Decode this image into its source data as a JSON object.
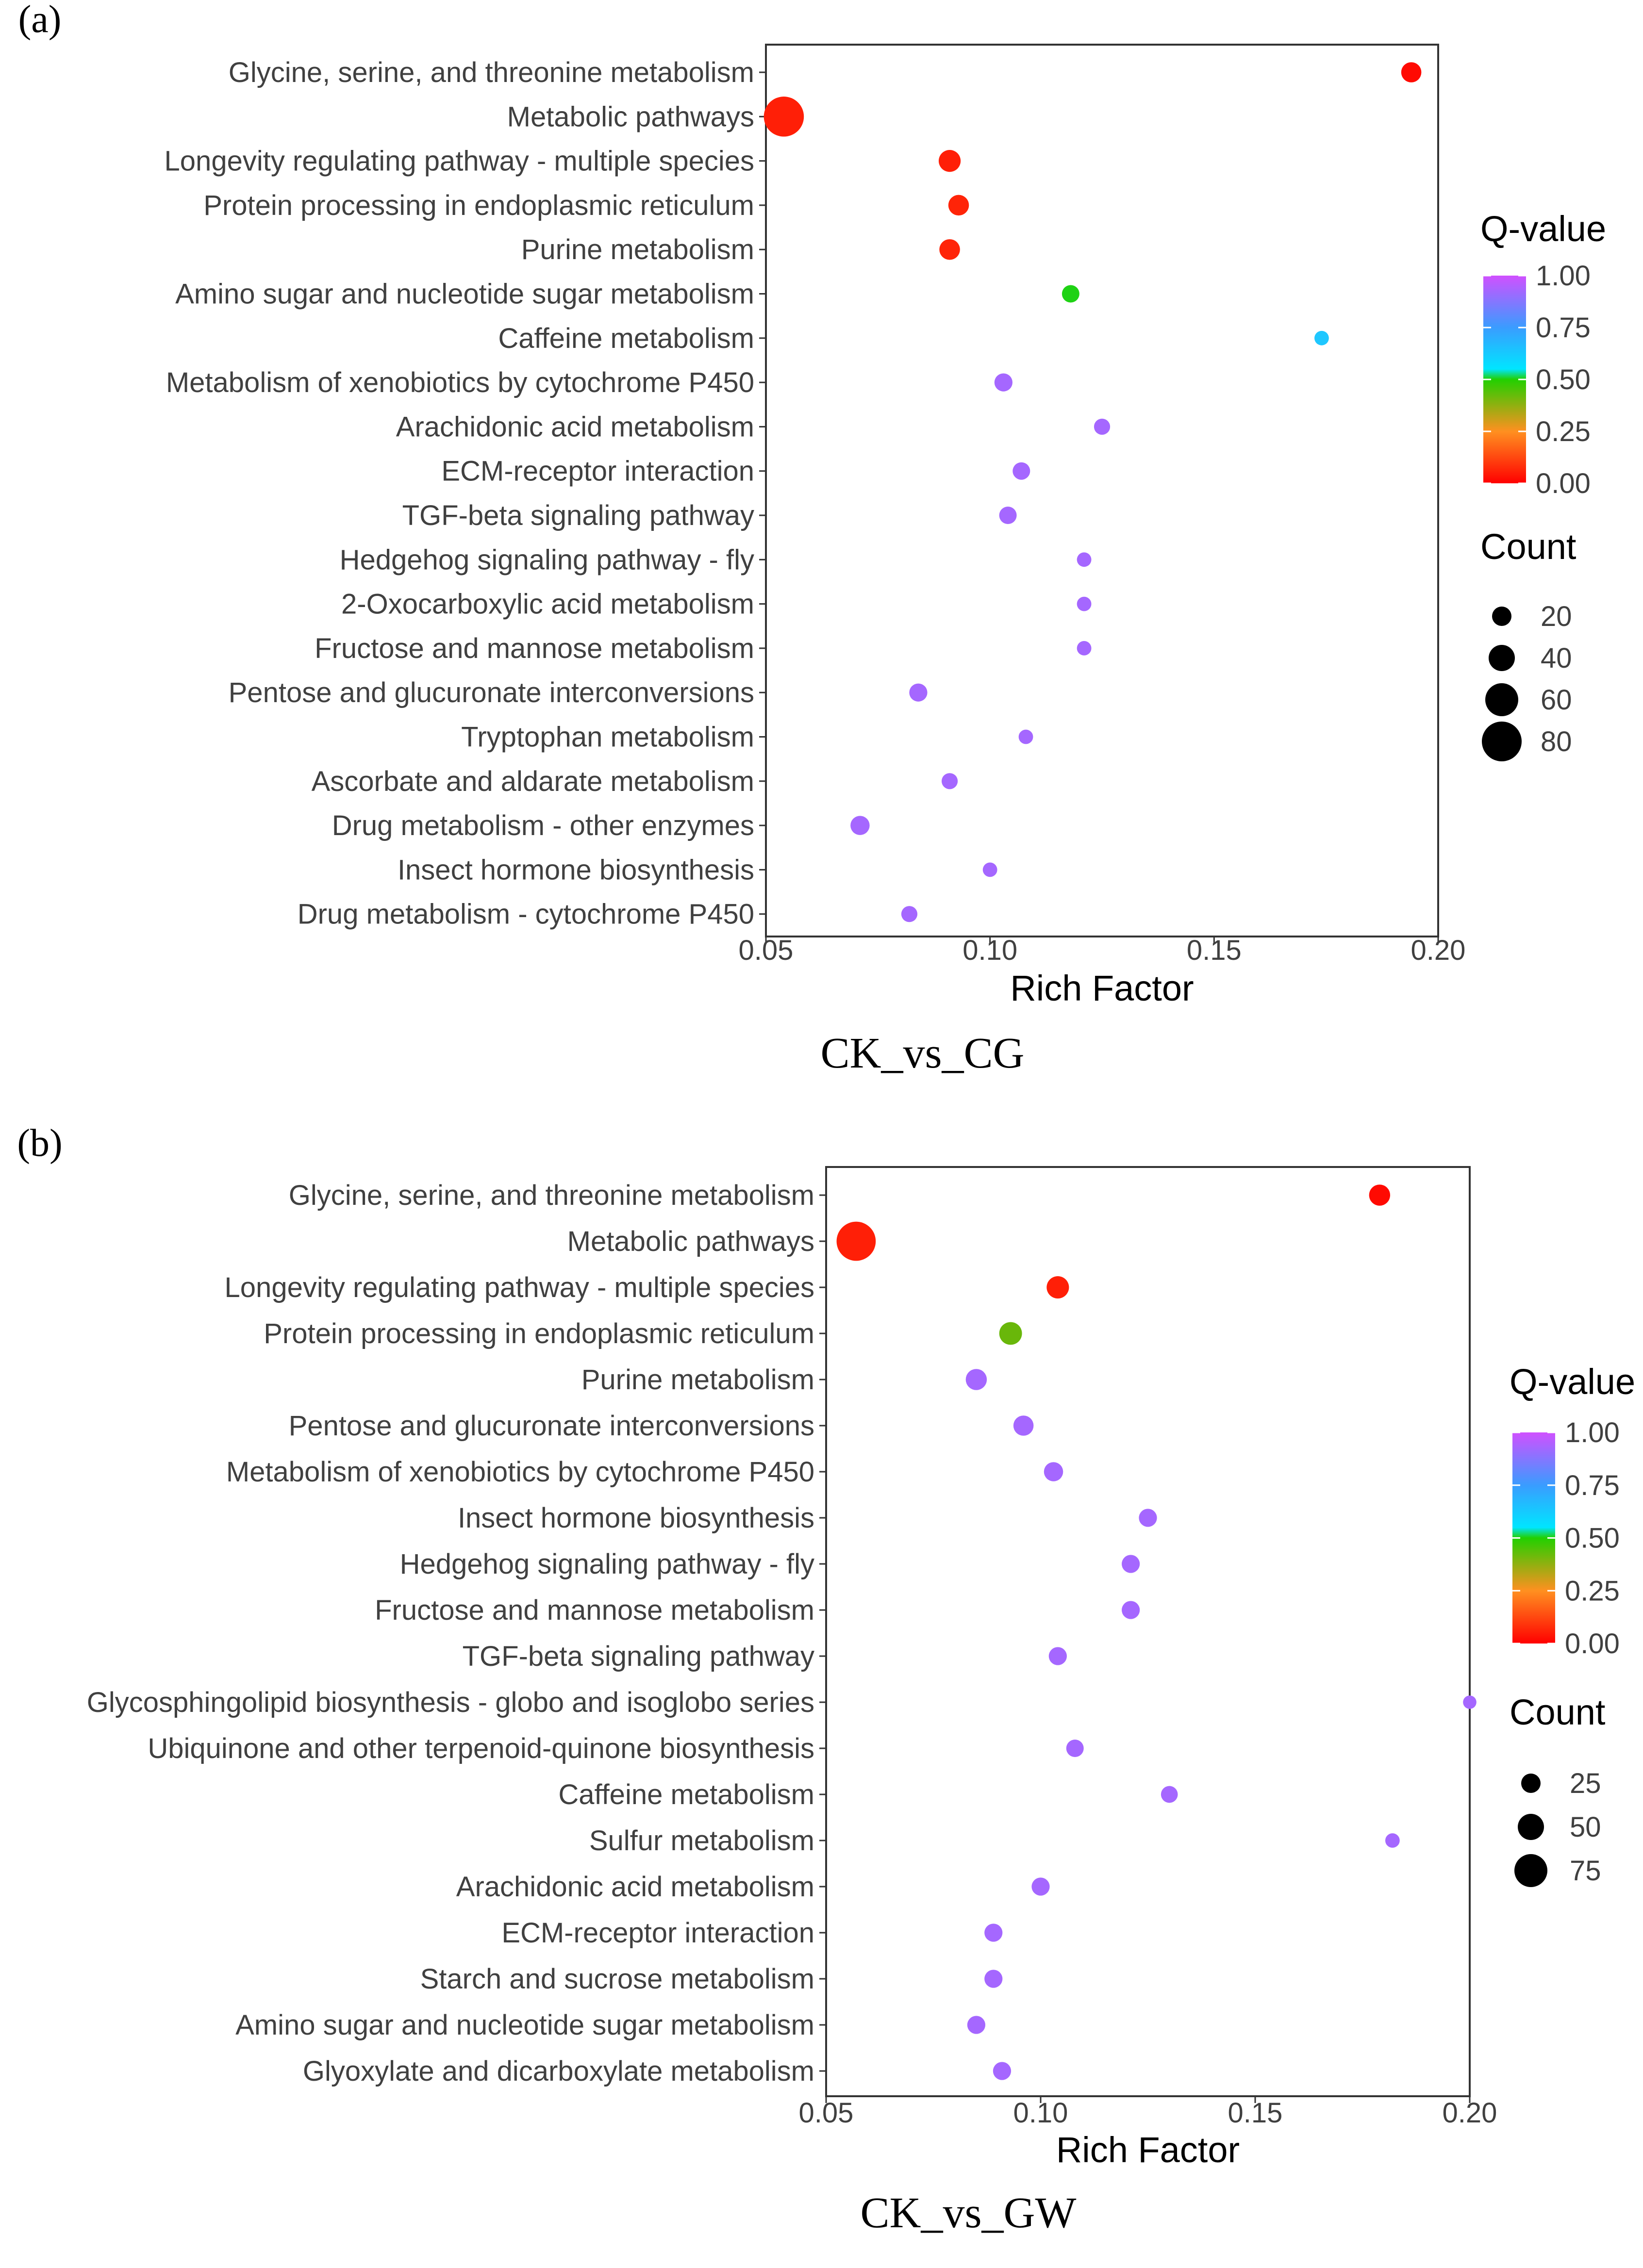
{
  "panels": [
    {
      "panel_label": "(a)",
      "caption": "CK_vs_CG",
      "chart_data": {
        "type": "scatter",
        "title": "",
        "xlabel": "Rich Factor",
        "ylabel": "",
        "xlim": [
          0.05,
          0.2
        ],
        "xticks": [
          0.05,
          0.1,
          0.15,
          0.2
        ],
        "xtick_labels": [
          "0.05",
          "0.10",
          "0.15",
          "0.20"
        ],
        "categories": [
          "Glycine, serine, and threonine metabolism",
          "Metabolic pathways",
          "Longevity regulating pathway - multiple species",
          "Protein processing in endoplasmic reticulum",
          "Purine metabolism",
          "Amino sugar and nucleotide sugar metabolism",
          "Caffeine metabolism",
          "Metabolism of xenobiotics by cytochrome P450",
          "Arachidonic acid metabolism",
          "ECM-receptor interaction",
          "TGF-beta signaling pathway",
          "Hedgehog signaling pathway - fly",
          "2-Oxocarboxylic acid metabolism",
          "Fructose and mannose metabolism",
          "Pentose and glucuronate interconversions",
          "Tryptophan metabolism",
          "Ascorbate and aldarate metabolism",
          "Drug metabolism - other enzymes",
          "Insect hormone biosynthesis",
          "Drug metabolism - cytochrome P450"
        ],
        "rich_factor": [
          0.194,
          0.054,
          0.091,
          0.093,
          0.091,
          0.118,
          0.174,
          0.103,
          0.125,
          0.107,
          0.104,
          0.121,
          0.121,
          0.121,
          0.084,
          0.108,
          0.091,
          0.071,
          0.1,
          0.082
        ],
        "q_value": [
          0.02,
          0.06,
          0.06,
          0.07,
          0.07,
          0.52,
          0.8,
          0.96,
          0.96,
          0.96,
          0.96,
          0.96,
          0.96,
          0.96,
          0.96,
          0.96,
          0.96,
          0.96,
          0.96,
          0.96
        ],
        "count": [
          12,
          90,
          16,
          13,
          13,
          7,
          3,
          8,
          5,
          7,
          7,
          3,
          3,
          3,
          8,
          3,
          5,
          10,
          3,
          5
        ],
        "legend_color": {
          "title": "Q-value",
          "ticks": [
            "1.00",
            "0.75",
            "0.50",
            "0.25",
            "0.00"
          ]
        },
        "legend_size": {
          "title": "Count",
          "values": [
            20,
            40,
            60,
            80
          ]
        }
      }
    },
    {
      "panel_label": "(b)",
      "caption": "CK_vs_GW",
      "chart_data": {
        "type": "scatter",
        "title": "",
        "xlabel": "Rich Factor",
        "ylabel": "",
        "xlim": [
          0.05,
          0.2
        ],
        "xticks": [
          0.05,
          0.1,
          0.15,
          0.2
        ],
        "xtick_labels": [
          "0.05",
          "0.10",
          "0.15",
          "0.20"
        ],
        "categories": [
          "Glycine, serine, and threonine metabolism",
          "Metabolic pathways",
          "Longevity regulating pathway - multiple species",
          "Protein processing in endoplasmic reticulum",
          "Purine metabolism",
          "Pentose and glucuronate interconversions",
          "Metabolism of xenobiotics by cytochrome P450",
          "Insect hormone biosynthesis",
          "Hedgehog signaling pathway - fly",
          "Fructose and mannose metabolism",
          "TGF-beta signaling pathway",
          "Glycosphingolipid biosynthesis - globo and isoglobo series",
          "Ubiquinone and other terpenoid-quinone biosynthesis",
          "Caffeine metabolism",
          "Sulfur metabolism",
          "Arachidonic acid metabolism",
          "ECM-receptor interaction",
          "Starch and sucrose metabolism",
          "Amino sugar and nucleotide sugar metabolism",
          "Glyoxylate and dicarboxylate metabolism"
        ],
        "rich_factor": [
          0.179,
          0.057,
          0.104,
          0.093,
          0.085,
          0.096,
          0.103,
          0.125,
          0.121,
          0.121,
          0.104,
          0.2,
          0.108,
          0.13,
          0.182,
          0.1,
          0.089,
          0.089,
          0.085,
          0.091
        ],
        "q_value": [
          0.02,
          0.06,
          0.06,
          0.42,
          0.96,
          0.96,
          0.96,
          0.96,
          0.96,
          0.96,
          0.96,
          0.96,
          0.96,
          0.96,
          0.96,
          0.96,
          0.96,
          0.96,
          0.96,
          0.96
        ],
        "count": [
          14,
          85,
          17,
          18,
          14,
          12,
          10,
          8,
          8,
          8,
          8,
          2,
          7,
          6,
          3,
          8,
          8,
          8,
          8,
          8
        ],
        "legend_color": {
          "title": "Q-value",
          "ticks": [
            "1.00",
            "0.75",
            "0.50",
            "0.25",
            "0.00"
          ]
        },
        "legend_size": {
          "title": "Count",
          "values": [
            25,
            50,
            75
          ]
        }
      }
    }
  ],
  "colors": {
    "q_low": "#ff0000",
    "q_025": "#ff8020",
    "q_050": "#22d000",
    "q_075": "#00e5ff",
    "q_high": "#d050ff",
    "axis": "#333333",
    "text": "#404040"
  }
}
